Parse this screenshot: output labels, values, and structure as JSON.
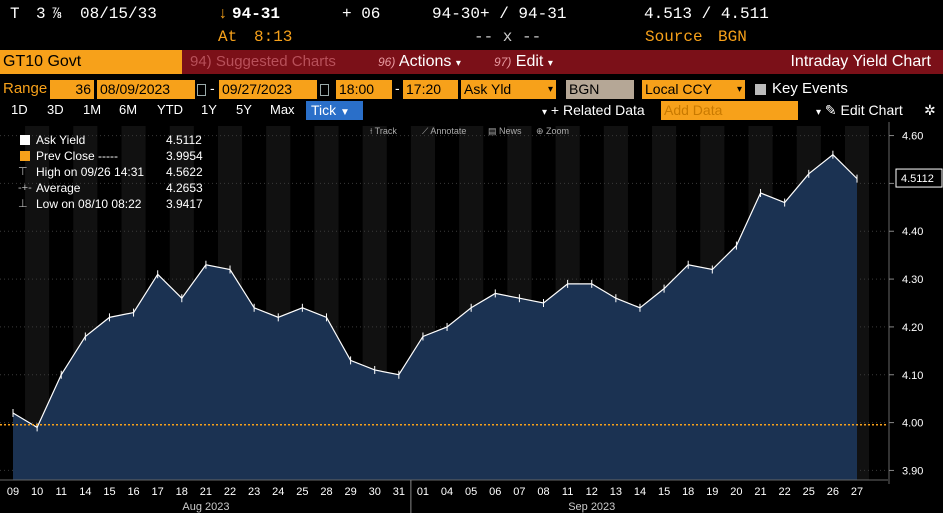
{
  "quote": {
    "ticker_prefix": "T",
    "coupon_whole": "3",
    "coupon_frac": "⅞",
    "maturity": "08/15/33",
    "arrow": "↓",
    "price": "94-31",
    "change": "+ 06",
    "bid_ask": "94-30+ / 94-31",
    "yields": "4.513 / 4.511",
    "at_label": "At",
    "time": "8:13",
    "size": "-- x --",
    "source_label": "Source",
    "source": "BGN"
  },
  "function_bar": {
    "ticker": "GT10 Govt",
    "suggested_num": "94)",
    "suggested": "Suggested Charts",
    "actions_num": "96)",
    "actions": "Actions",
    "edit_num": "97)",
    "edit": "Edit",
    "title": "Intraday Yield Chart"
  },
  "settings": {
    "range_label": "Range",
    "range_value": "36",
    "start_date": "08/09/2023",
    "end_date": "09/27/2023",
    "start_time": "18:00",
    "end_time": "17:20",
    "field": "Ask Yld",
    "source": "BGN",
    "currency": "Local CCY",
    "key_events": "Key Events"
  },
  "periods": [
    "1D",
    "3D",
    "1M",
    "6M",
    "YTD",
    "1Y",
    "5Y",
    "Max"
  ],
  "tick_label": "Tick",
  "related_data": "Related Data",
  "add_data_placeholder": "Add Data",
  "edit_chart": "Edit Chart",
  "mini_tools": [
    "Track",
    "Annotate",
    "News",
    "Zoom"
  ],
  "legend": {
    "ask_yield_label": "Ask Yield",
    "ask_yield_value": "4.5112",
    "prev_close_label": "Prev Close -----",
    "prev_close_value": "3.9954",
    "high_label": "High on 09/26 14:31",
    "high_value": "4.5622",
    "average_label": "Average",
    "average_value": "4.2653",
    "low_label": "Low on 08/10 08:22",
    "low_value": "3.9417"
  },
  "colors": {
    "area_fill": "#1b3252",
    "price_line": "#ffffff",
    "prev_close_line": "#f7a11a",
    "grid": "#3a3a3a",
    "accent_orange": "#f7a11a",
    "bar_red": "#7b1018",
    "tick_blue": "#2a6fc9"
  },
  "chart_data": {
    "type": "area",
    "ylim": [
      3.88,
      4.62
    ],
    "yticks": [
      "4.60",
      "4.50",
      "4.40",
      "4.30",
      "4.20",
      "4.10",
      "4.00",
      "3.90"
    ],
    "last_value": "4.5112",
    "prev_close": 3.9954,
    "x": [
      "09",
      "10",
      "11",
      "14",
      "15",
      "16",
      "17",
      "18",
      "21",
      "22",
      "23",
      "24",
      "25",
      "28",
      "29",
      "30",
      "31",
      "01",
      "04",
      "05",
      "06",
      "07",
      "08",
      "11",
      "12",
      "13",
      "14",
      "15",
      "18",
      "19",
      "20",
      "21",
      "22",
      "25",
      "26",
      "27"
    ],
    "month_labels": [
      {
        "text": "Aug 2023",
        "at": "21"
      },
      {
        "text": "Sep 2023",
        "at": "12"
      }
    ],
    "series": [
      {
        "values": [
          4.02,
          3.99,
          4.1,
          4.18,
          4.22,
          4.23,
          4.31,
          4.26,
          4.33,
          4.32,
          4.24,
          4.22,
          4.24,
          4.22,
          4.13,
          4.11,
          4.1,
          4.18,
          4.2,
          4.24,
          4.27,
          4.26,
          4.25,
          4.29,
          4.29,
          4.26,
          4.24,
          4.28,
          4.33,
          4.32,
          4.37,
          4.48,
          4.46,
          4.52,
          4.56,
          4.51
        ]
      }
    ]
  }
}
